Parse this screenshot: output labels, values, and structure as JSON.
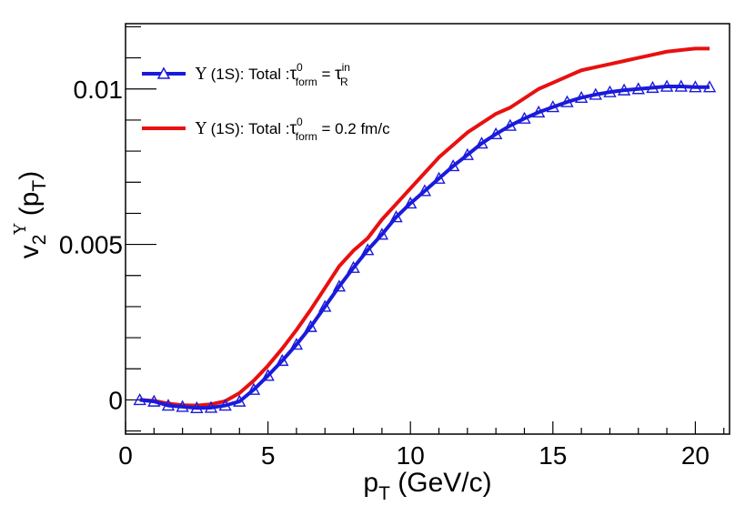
{
  "chart_data": {
    "type": "line",
    "title": "",
    "xlabel": "p_T (GeV/c)",
    "ylabel": "v_2^Υ (p_T)",
    "xlim": [
      0,
      21.2
    ],
    "ylim": [
      -0.0011,
      0.0121
    ],
    "x_ticks": [
      0,
      5,
      10,
      15,
      20
    ],
    "x_tick_labels": [
      "0",
      "5",
      "10",
      "15",
      "20"
    ],
    "y_ticks": [
      0,
      0.005,
      0.01
    ],
    "y_tick_labels": [
      "0",
      "0.005",
      "0.01"
    ],
    "grid": false,
    "legend_position": "top-left",
    "series": [
      {
        "name": "Υ (1S): Total :τ_form^0 = τ_R^in",
        "legend": {
          "symbol": "Υ",
          "prefix": " (1S): Total :",
          "tau": "τ",
          "sup": "0",
          "sub": "form",
          "mid": " = ",
          "rhs": "τ",
          "rhs_sup": "in",
          "rhs_sub": "R"
        },
        "color": "#1a1adc",
        "marker": "open-triangle",
        "x": [
          0.5,
          1.0,
          1.5,
          2.0,
          2.5,
          3.0,
          3.5,
          4.0,
          4.5,
          5.0,
          5.5,
          6.0,
          6.5,
          7.0,
          7.5,
          8.0,
          8.5,
          9.0,
          9.5,
          10.0,
          10.5,
          11.0,
          11.5,
          12.0,
          12.5,
          13.0,
          13.5,
          14.0,
          14.5,
          15.0,
          15.5,
          16.0,
          16.5,
          17.0,
          17.5,
          18.0,
          18.5,
          19.0,
          19.5,
          20.0,
          20.5
        ],
        "values": [
          0.0,
          -5e-05,
          -0.00018,
          -0.00022,
          -0.00026,
          -0.00025,
          -0.00018,
          -5e-05,
          0.00033,
          0.00078,
          0.00126,
          0.00178,
          0.00235,
          0.003,
          0.00365,
          0.00425,
          0.00482,
          0.00532,
          0.00588,
          0.00632,
          0.00672,
          0.00712,
          0.00752,
          0.00788,
          0.00825,
          0.00855,
          0.00882,
          0.00905,
          0.00925,
          0.00942,
          0.00958,
          0.00972,
          0.00982,
          0.0099,
          0.00996,
          0.01,
          0.01004,
          0.01008,
          0.01008,
          0.01006,
          0.01006
        ]
      },
      {
        "name": "Υ (1S): Total :τ_form^0 = 0.2 fm/c",
        "legend": {
          "symbol": "Υ",
          "prefix": " (1S): Total :",
          "tau": "τ",
          "sup": "0",
          "sub": "form",
          "mid": " = 0.2 fm/c"
        },
        "color": "#e81010",
        "marker": "none",
        "x": [
          0.5,
          1.0,
          1.5,
          2.0,
          2.5,
          3.0,
          3.5,
          4.0,
          4.5,
          5.0,
          5.5,
          6.0,
          6.5,
          7.0,
          7.5,
          8.0,
          8.5,
          9.0,
          9.5,
          10.0,
          10.5,
          11.0,
          11.5,
          12.0,
          12.5,
          13.0,
          13.5,
          14.0,
          14.5,
          15.0,
          15.5,
          16.0,
          16.5,
          17.0,
          17.5,
          18.0,
          18.5,
          19.0,
          19.5,
          20.0,
          20.5
        ],
        "values": [
          0.0,
          -3e-05,
          -0.00012,
          -0.00017,
          -0.00018,
          -0.00014,
          -4e-05,
          0.00022,
          0.00062,
          0.0011,
          0.00165,
          0.00225,
          0.0029,
          0.0036,
          0.0043,
          0.0048,
          0.0052,
          0.0058,
          0.0063,
          0.0068,
          0.0073,
          0.0078,
          0.0082,
          0.0086,
          0.0089,
          0.0092,
          0.0094,
          0.0097,
          0.01,
          0.0102,
          0.0104,
          0.0106,
          0.0107,
          0.0108,
          0.0109,
          0.011,
          0.0111,
          0.0112,
          0.01125,
          0.0113,
          0.0113
        ]
      }
    ]
  }
}
